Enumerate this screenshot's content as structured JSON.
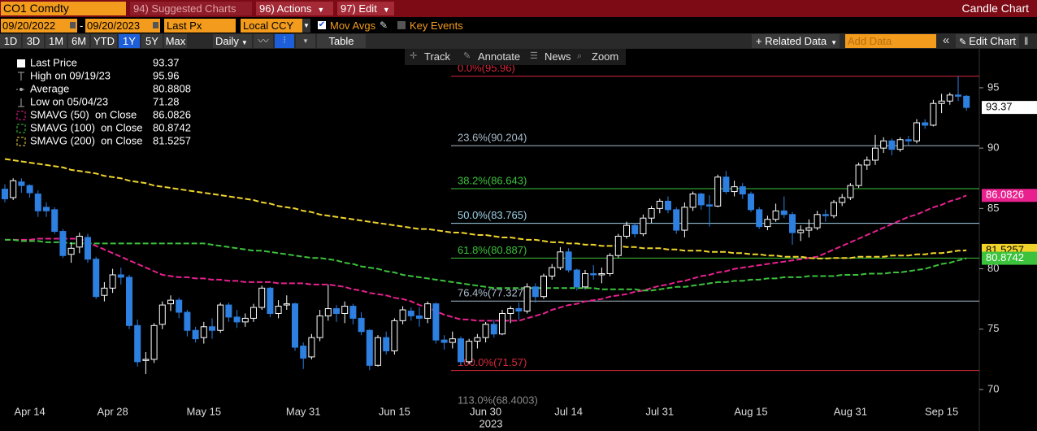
{
  "header": {
    "ticker": "CO1 Comdty",
    "suggested_charts": "94) Suggested Charts",
    "actions": "96) Actions",
    "edit": "97) Edit",
    "title": "Candle Chart"
  },
  "controls": {
    "start_date": "09/20/2022",
    "date_separator": "-",
    "end_date": "09/20/2023",
    "field": "Last Px",
    "currency": "Local CCY",
    "mov_avgs": "Mov Avgs",
    "mov_avgs_checked": true,
    "key_events": "Key Events",
    "key_events_checked": false,
    "periods": [
      "1D",
      "3D",
      "1M",
      "6M",
      "YTD",
      "1Y",
      "5Y",
      "Max"
    ],
    "selected_period_index": 5,
    "frequency": "Daily",
    "table": "Table",
    "related_data": "+ Related Data",
    "add_data": "Add Data",
    "edit_chart": "Edit Chart"
  },
  "toolbar": [
    "Track",
    "Annotate",
    "News",
    "Zoom"
  ],
  "chart_data": {
    "type": "candlestick",
    "year_label": "2023",
    "categories": [
      null,
      null,
      null,
      "Apr 14",
      null,
      null,
      null,
      null,
      null,
      null,
      null,
      null,
      null,
      "Apr 28",
      null,
      null,
      null,
      null,
      null,
      null,
      null,
      null,
      null,
      null,
      "May 15",
      null,
      null,
      null,
      null,
      null,
      null,
      null,
      null,
      null,
      null,
      null,
      "May 31",
      null,
      null,
      null,
      null,
      null,
      null,
      null,
      null,
      null,
      null,
      "Jun 15",
      null,
      null,
      null,
      null,
      null,
      null,
      null,
      null,
      null,
      null,
      "Jun 30",
      null,
      null,
      null,
      null,
      null,
      null,
      null,
      null,
      null,
      "Jul 14",
      null,
      null,
      null,
      null,
      null,
      null,
      null,
      null,
      null,
      null,
      "Jul 31",
      null,
      null,
      null,
      null,
      null,
      null,
      null,
      null,
      null,
      null,
      "Aug 15",
      null,
      null,
      null,
      null,
      null,
      null,
      null,
      null,
      null,
      null,
      null,
      "Aug 31",
      null,
      null,
      null,
      null,
      null,
      null,
      null,
      null,
      null,
      null,
      "Sep 15",
      null,
      null,
      null
    ],
    "ylim": [
      68.92,
      98.23
    ],
    "yticks": [
      70,
      75,
      80,
      85,
      90,
      95
    ],
    "grid": false,
    "series": [
      {
        "name": "Last Price",
        "last": 93.37,
        "up_color": "#ffffff",
        "down_color": "#2d7fe0",
        "open": [
          86.6,
          85.9,
          87.2,
          86.9,
          86.2,
          85.1,
          84.9,
          83.1,
          81.2,
          81.8,
          82.6,
          80.8,
          77.8,
          78.4,
          79.5,
          79.3,
          75.3,
          72.4,
          72.5,
          75.4,
          77.1,
          77.4,
          76.4,
          74.9,
          74.3,
          75.2,
          74.9,
          77.0,
          76.0,
          75.6,
          75.9,
          76.8,
          78.4,
          76.3,
          77.0,
          77.1,
          73.6,
          72.7,
          74.3,
          76.1,
          76.7,
          76.3,
          76.9,
          75.9,
          74.9,
          72.0,
          74.3,
          73.2,
          75.7,
          76.5,
          76.1,
          75.9,
          77.1,
          74.1,
          73.9,
          74.2,
          72.3,
          74.0,
          74.3,
          75.4,
          74.6,
          76.3,
          76.7,
          76.5,
          78.5,
          77.7,
          79.4,
          80.1,
          81.4,
          79.9,
          78.5,
          79.6,
          79.5,
          79.6,
          81.1,
          82.7,
          83.6,
          82.9,
          84.2,
          85.0,
          85.6,
          84.9,
          83.2,
          85.1,
          86.2,
          85.3,
          85.2,
          87.6,
          86.4,
          86.8,
          86.2,
          84.9,
          83.5,
          84.1,
          84.8,
          84.5,
          83.0,
          83.2,
          83.4,
          84.5,
          84.4,
          85.5,
          85.9,
          86.9,
          88.6,
          89.0,
          90.0,
          90.6,
          89.9,
          90.7,
          90.6,
          92.1,
          91.9,
          93.7,
          93.9,
          94.4,
          94.3
        ],
        "high": [
          87.0,
          87.5,
          87.5,
          87.0,
          86.5,
          85.5,
          85.1,
          83.3,
          82.2,
          83.0,
          82.9,
          81.0,
          78.9,
          80.0,
          80.1,
          79.5,
          75.8,
          73.1,
          75.5,
          77.3,
          77.8,
          77.6,
          76.6,
          75.2,
          75.6,
          75.9,
          77.2,
          77.2,
          76.6,
          76.3,
          77.1,
          78.6,
          78.5,
          77.4,
          77.8,
          77.2,
          73.9,
          74.6,
          76.6,
          78.7,
          77.0,
          77.3,
          77.1,
          76.4,
          75.0,
          74.5,
          74.8,
          75.9,
          76.9,
          76.8,
          76.8,
          77.3,
          77.2,
          74.5,
          74.8,
          74.4,
          74.2,
          74.6,
          75.6,
          75.8,
          76.6,
          76.9,
          77.2,
          78.8,
          78.8,
          79.6,
          80.4,
          81.8,
          81.7,
          80.0,
          79.9,
          80.3,
          80.1,
          81.3,
          82.9,
          83.9,
          83.8,
          84.5,
          85.2,
          85.8,
          86.0,
          85.1,
          85.5,
          86.4,
          86.3,
          86.1,
          87.8,
          88.1,
          87.3,
          87.1,
          86.4,
          85.1,
          84.4,
          85.4,
          86.0,
          84.7,
          83.6,
          84.1,
          84.8,
          84.9,
          85.7,
          86.2,
          87.1,
          88.8,
          89.3,
          91.1,
          90.9,
          90.8,
          90.9,
          91.0,
          92.4,
          92.4,
          94.0,
          94.5,
          94.6,
          95.96,
          94.4
        ],
        "low": [
          85.5,
          85.7,
          86.3,
          85.9,
          84.3,
          84.3,
          82.9,
          80.9,
          80.5,
          81.3,
          80.5,
          77.5,
          77.3,
          78.0,
          78.7,
          75.0,
          71.9,
          71.28,
          72.2,
          75.0,
          76.5,
          75.9,
          74.4,
          73.9,
          73.8,
          74.2,
          74.7,
          75.6,
          75.1,
          75.2,
          75.6,
          76.6,
          76.0,
          75.9,
          76.6,
          73.2,
          71.7,
          72.5,
          74.0,
          75.7,
          75.6,
          75.5,
          75.4,
          74.5,
          71.6,
          71.9,
          72.9,
          72.9,
          75.4,
          75.7,
          75.2,
          75.5,
          73.8,
          73.3,
          73.4,
          72.0,
          72.1,
          73.4,
          73.9,
          74.3,
          74.5,
          75.5,
          75.8,
          76.3,
          77.2,
          77.5,
          79.1,
          79.9,
          79.7,
          78.2,
          78.3,
          79.1,
          78.8,
          79.4,
          80.9,
          82.5,
          82.6,
          82.7,
          83.8,
          84.6,
          84.6,
          82.9,
          82.6,
          84.8,
          84.9,
          83.5,
          85.1,
          86.2,
          86.0,
          85.8,
          84.7,
          83.3,
          83.2,
          83.9,
          84.2,
          82.0,
          82.3,
          82.6,
          83.2,
          83.9,
          84.2,
          85.2,
          85.7,
          86.7,
          88.2,
          88.6,
          89.6,
          89.4,
          89.7,
          90.2,
          90.4,
          91.6,
          91.8,
          92.9,
          93.6,
          93.9,
          93.1
        ],
        "close": [
          85.8,
          87.3,
          86.9,
          86.3,
          84.8,
          84.8,
          83.1,
          81.1,
          81.7,
          82.7,
          80.8,
          77.7,
          78.4,
          79.5,
          79.3,
          75.3,
          72.3,
          72.5,
          75.3,
          77.0,
          77.4,
          76.4,
          74.9,
          74.2,
          75.2,
          74.9,
          77.0,
          76.0,
          75.6,
          75.9,
          76.8,
          78.4,
          76.3,
          76.9,
          77.1,
          73.5,
          72.6,
          74.3,
          76.1,
          76.7,
          76.3,
          76.9,
          75.9,
          74.8,
          72.0,
          74.3,
          73.2,
          75.7,
          76.6,
          76.1,
          75.9,
          77.1,
          74.1,
          73.9,
          74.2,
          72.3,
          74.0,
          74.3,
          75.4,
          74.6,
          76.3,
          76.7,
          76.5,
          78.5,
          77.7,
          79.4,
          80.1,
          81.4,
          79.9,
          78.5,
          79.6,
          79.5,
          79.6,
          81.1,
          82.7,
          83.6,
          82.9,
          84.2,
          84.99,
          85.6,
          84.9,
          83.2,
          85.1,
          86.2,
          85.3,
          85.2,
          87.6,
          86.4,
          86.8,
          86.2,
          84.9,
          83.5,
          84.1,
          84.8,
          84.5,
          83.0,
          83.2,
          83.4,
          84.5,
          84.4,
          85.5,
          85.9,
          86.9,
          88.6,
          89.0,
          90.0,
          90.6,
          89.9,
          90.7,
          90.6,
          92.1,
          91.9,
          93.7,
          93.9,
          94.4,
          94.3,
          93.37
        ]
      },
      {
        "name": "SMAVG (50)  on Close",
        "last": 86.0826,
        "color": "#e8218f",
        "values": [
          82.4,
          82.4,
          82.4,
          82.4,
          82.5,
          82.5,
          82.5,
          82.5,
          82.5,
          82.5,
          82.2,
          81.9,
          81.6,
          81.3,
          81.0,
          80.7,
          80.4,
          80.1,
          79.8,
          79.5,
          79.4,
          79.3,
          79.3,
          79.2,
          79.2,
          79.1,
          79.1,
          79.0,
          79.0,
          78.9,
          78.9,
          78.9,
          78.9,
          78.8,
          78.8,
          78.8,
          78.8,
          78.7,
          78.7,
          78.7,
          78.6,
          78.5,
          78.3,
          78.2,
          78.0,
          77.9,
          77.8,
          77.6,
          77.5,
          77.3,
          77.0,
          76.8,
          76.5,
          76.2,
          76.0,
          75.8,
          75.8,
          75.7,
          75.7,
          75.7,
          75.7,
          75.7,
          75.7,
          75.9,
          76.1,
          76.3,
          76.6,
          76.8,
          77.0,
          77.1,
          77.3,
          77.4,
          77.5,
          77.7,
          77.8,
          77.9,
          78.1,
          78.2,
          78.4,
          78.6,
          78.7,
          78.9,
          79.0,
          79.2,
          79.4,
          79.5,
          79.7,
          79.8,
          80.0,
          80.1,
          80.2,
          80.3,
          80.4,
          80.5,
          80.6,
          80.7,
          80.8,
          80.9,
          81.0,
          81.3,
          81.6,
          81.9,
          82.2,
          82.5,
          82.8,
          83.1,
          83.4,
          83.7,
          84.0,
          84.3,
          84.5,
          84.8,
          85.1,
          85.3,
          85.6,
          85.8,
          86.08
        ]
      },
      {
        "name": "SMAVG (100)  on Close",
        "last": 80.8742,
        "color": "#3cc23c",
        "values": [
          82.4,
          82.4,
          82.3,
          82.3,
          82.3,
          82.2,
          82.2,
          82.2,
          82.1,
          82.1,
          82.1,
          82.1,
          82.1,
          82.1,
          82.1,
          82.1,
          82.1,
          82.1,
          82.1,
          82.1,
          82.1,
          82.1,
          82.1,
          82.1,
          82.1,
          82.0,
          81.9,
          81.8,
          81.7,
          81.6,
          81.5,
          81.5,
          81.4,
          81.3,
          81.2,
          81.1,
          81.0,
          80.9,
          80.9,
          80.8,
          80.7,
          80.5,
          80.4,
          80.2,
          80.1,
          80.0,
          79.8,
          79.7,
          79.5,
          79.4,
          79.3,
          79.2,
          79.1,
          79.0,
          78.9,
          78.8,
          78.7,
          78.6,
          78.5,
          78.4,
          78.4,
          78.4,
          78.4,
          78.4,
          78.4,
          78.4,
          78.4,
          78.4,
          78.4,
          78.4,
          78.4,
          78.4,
          78.3,
          78.3,
          78.3,
          78.3,
          78.3,
          78.2,
          78.2,
          78.3,
          78.4,
          78.5,
          78.5,
          78.6,
          78.7,
          78.8,
          78.9,
          78.9,
          79.0,
          79.0,
          79.1,
          79.1,
          79.2,
          79.2,
          79.3,
          79.3,
          79.3,
          79.4,
          79.4,
          79.4,
          79.4,
          79.5,
          79.5,
          79.5,
          79.6,
          79.6,
          79.6,
          79.7,
          79.7,
          79.8,
          79.9,
          80.0,
          80.2,
          80.4,
          80.5,
          80.7,
          80.87
        ]
      },
      {
        "name": "SMAVG (200)  on Close",
        "last": 81.5257,
        "color": "#f0d42c",
        "values": [
          89.1,
          89.0,
          88.9,
          88.8,
          88.7,
          88.6,
          88.5,
          88.4,
          88.2,
          88.1,
          88.0,
          87.9,
          87.7,
          87.6,
          87.5,
          87.3,
          87.2,
          87.1,
          86.9,
          86.8,
          86.7,
          86.6,
          86.5,
          86.4,
          86.3,
          86.2,
          86.1,
          86.0,
          85.9,
          85.8,
          85.7,
          85.5,
          85.4,
          85.2,
          85.1,
          85.0,
          84.8,
          84.7,
          84.5,
          84.4,
          84.3,
          84.2,
          84.1,
          84.0,
          83.9,
          83.8,
          83.7,
          83.6,
          83.5,
          83.4,
          83.3,
          83.3,
          83.2,
          83.1,
          83.0,
          83.0,
          82.9,
          82.8,
          82.8,
          82.7,
          82.6,
          82.6,
          82.5,
          82.4,
          82.4,
          82.3,
          82.2,
          82.2,
          82.1,
          82.1,
          82.0,
          82.0,
          81.9,
          81.9,
          81.9,
          81.8,
          81.8,
          81.7,
          81.7,
          81.7,
          81.6,
          81.6,
          81.5,
          81.5,
          81.5,
          81.4,
          81.4,
          81.4,
          81.3,
          81.3,
          81.2,
          81.2,
          81.1,
          81.1,
          81.0,
          81.0,
          81.0,
          80.9,
          80.85,
          80.85,
          80.9,
          80.9,
          80.9,
          81.0,
          81.0,
          81.0,
          81.0,
          81.1,
          81.1,
          81.1,
          81.2,
          81.2,
          81.3,
          81.3,
          81.4,
          81.5,
          81.53
        ]
      }
    ],
    "stats": [
      {
        "label": "High on 09/19/23",
        "value": 95.96
      },
      {
        "label": "Average",
        "value": 80.8808
      },
      {
        "label": "Low on 05/04/23",
        "value": 71.28
      }
    ],
    "fib_levels": [
      {
        "value": 95.96,
        "label": "0.0%(95.96)",
        "color": "#d8283c"
      },
      {
        "value": 90.204,
        "label": "23.6%(90.204)",
        "color": "#a9bccb"
      },
      {
        "value": 86.643,
        "label": "38.2%(86.643)",
        "color": "#3cc23c"
      },
      {
        "value": 83.765,
        "label": "50.0%(83.765)",
        "color": "#9fd2e8"
      },
      {
        "value": 80.887,
        "label": "61.8%(80.887)",
        "color": "#3cc23c"
      },
      {
        "value": 77.327,
        "label": "76.4%(77.327)",
        "color": "#a9bccb"
      },
      {
        "value": 71.57,
        "label": "100.0%(71.57)",
        "color": "#d8283c"
      },
      {
        "value": 68.4003,
        "label": "113.0%(68.4003)",
        "color": "#8a8a8a"
      }
    ]
  }
}
